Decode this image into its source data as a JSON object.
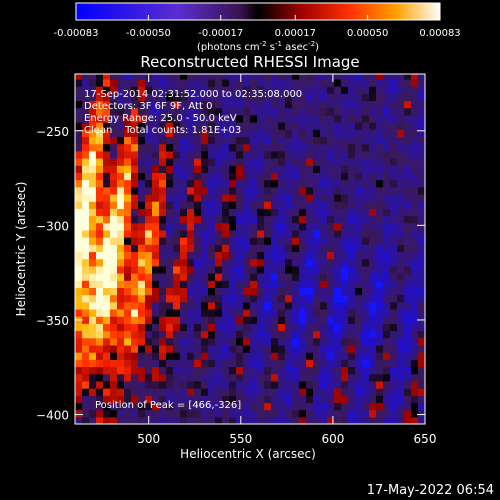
{
  "chart_data": {
    "type": "heatmap",
    "title": "Reconstructed RHESSI Image",
    "xlabel": "Heliocentric X (arcsec)",
    "ylabel": "Heliocentric Y (arcsec)",
    "xlim": [
      460,
      650
    ],
    "ylim": [
      -405,
      -220
    ],
    "xticks": [
      500,
      550,
      600,
      650
    ],
    "yticks": [
      -250,
      -300,
      -350,
      -400
    ],
    "colorbar": {
      "range": [
        -0.00083,
        0.00083
      ],
      "ticks": [
        "-0.00083",
        "-0.00050",
        "-0.00017",
        "0.00017",
        "0.00050",
        "0.00083"
      ],
      "unit_main": "(photons cm",
      "unit_sup1": "-2",
      "unit_mid": " s",
      "unit_sup2": "-1",
      "unit_mid2": " asec",
      "unit_sup3": "-2",
      "unit_end": ")"
    },
    "annotations": [
      "17-Sep-2014 02:31:52.000 to 02:35:08.000",
      "Detectors: 3F 6F 9F, Att 0",
      "Energy Range: 25.0 - 50.0 keV",
      "Clean    Total counts: 1.81E+03"
    ],
    "peak_label": "Position of Peak = [466,-326]",
    "peak": [
      466,
      -326
    ],
    "grid": false
  },
  "footer": {
    "timestamp": "17-May-2022 06:54"
  },
  "colors": {
    "background": "#000000",
    "text": "#ffffff"
  }
}
